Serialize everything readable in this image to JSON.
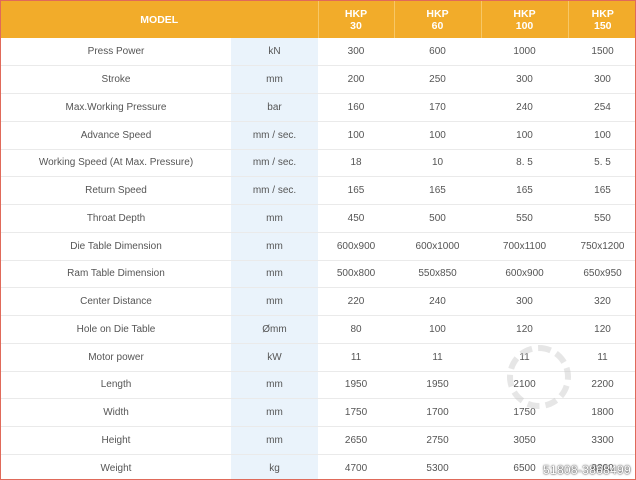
{
  "header": {
    "model_label": "MODEL",
    "models": [
      {
        "line1": "HKP",
        "line2": "30"
      },
      {
        "line1": "HKP",
        "line2": "60"
      },
      {
        "line1": "HKP",
        "line2": "100"
      },
      {
        "line1": "HKP",
        "line2": "150"
      }
    ]
  },
  "rows": [
    {
      "name": "Press Power",
      "unit": "kN",
      "values": [
        "300",
        "600",
        "1000",
        "1500"
      ]
    },
    {
      "name": "Stroke",
      "unit": "mm",
      "values": [
        "200",
        "250",
        "300",
        "300"
      ]
    },
    {
      "name": "Max.Working Pressure",
      "unit": "bar",
      "values": [
        "160",
        "170",
        "240",
        "254"
      ]
    },
    {
      "name": "Advance Speed",
      "unit": "mm / sec.",
      "values": [
        "100",
        "100",
        "100",
        "100"
      ]
    },
    {
      "name": "Working Speed (At Max. Pressure)",
      "unit": "mm / sec.",
      "values": [
        "18",
        "10",
        "8. 5",
        "5. 5"
      ]
    },
    {
      "name": "Return Speed",
      "unit": "mm / sec.",
      "values": [
        "165",
        "165",
        "165",
        "165"
      ]
    },
    {
      "name": "Throat Depth",
      "unit": "mm",
      "values": [
        "450",
        "500",
        "550",
        "550"
      ]
    },
    {
      "name": "Die Table Dimension",
      "unit": "mm",
      "values": [
        "600x900",
        "600x1000",
        "700x1100",
        "750x1200"
      ]
    },
    {
      "name": "Ram Table Dimension",
      "unit": "mm",
      "values": [
        "500x800",
        "550x850",
        "600x900",
        "650x950"
      ]
    },
    {
      "name": "Center Distance",
      "unit": "mm",
      "values": [
        "220",
        "240",
        "300",
        "320"
      ]
    },
    {
      "name": "Hole on Die Table",
      "unit": "Ømm",
      "values": [
        "80",
        "100",
        "120",
        "120"
      ]
    },
    {
      "name": "Motor power",
      "unit": "kW",
      "values": [
        "11",
        "11",
        "11",
        "11"
      ]
    },
    {
      "name": "Length",
      "unit": "mm",
      "values": [
        "1950",
        "1950",
        "2100",
        "2200"
      ]
    },
    {
      "name": "Width",
      "unit": "mm",
      "values": [
        "1750",
        "1700",
        "1750",
        "1800"
      ]
    },
    {
      "name": "Height",
      "unit": "mm",
      "values": [
        "2650",
        "2750",
        "3050",
        "3300"
      ]
    },
    {
      "name": "Weight",
      "unit": "kg",
      "values": [
        "4700",
        "5300",
        "6500",
        "8200"
      ]
    }
  ],
  "watermark": {
    "text": "51808-3868499",
    "icon": "gear-watermark-icon"
  }
}
